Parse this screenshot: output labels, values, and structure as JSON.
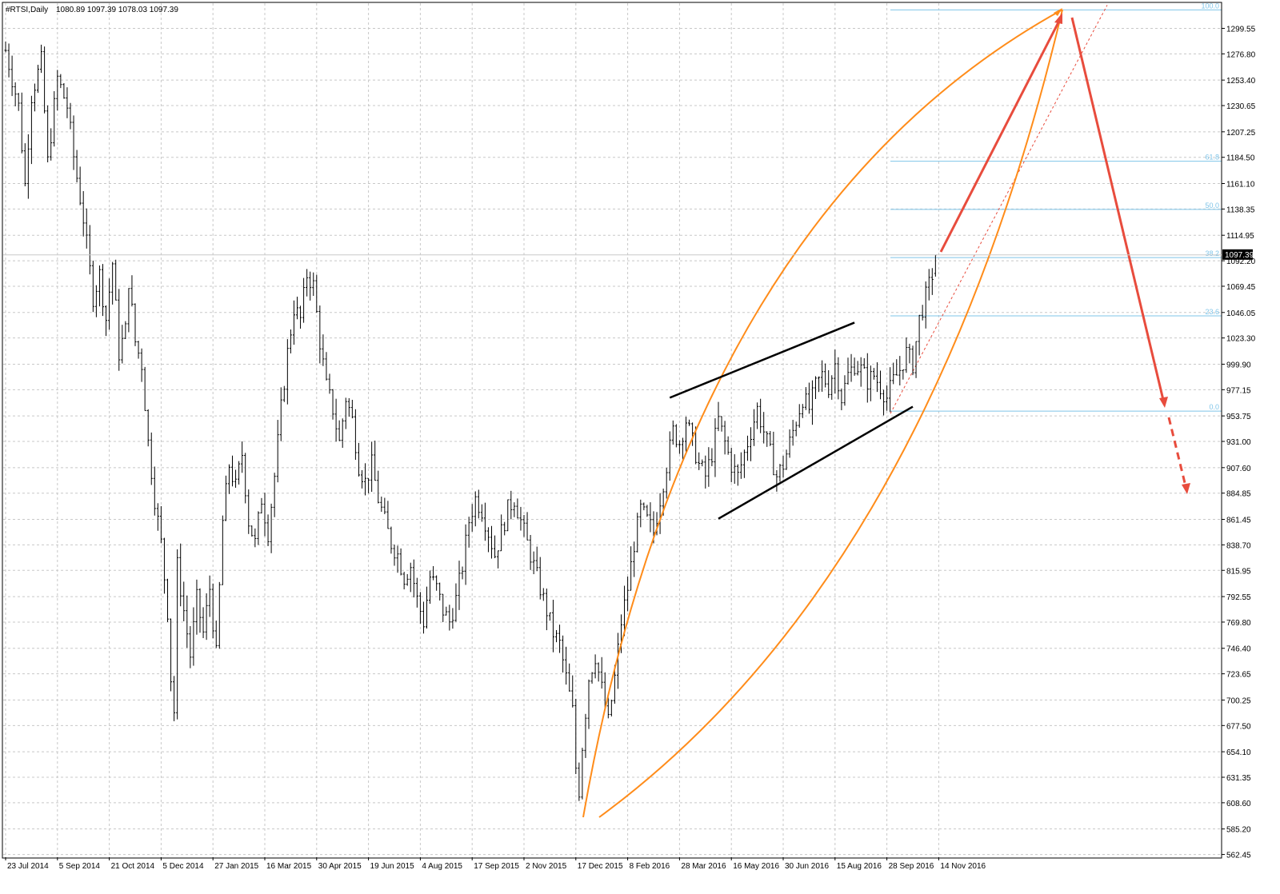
{
  "header": {
    "symbol_timeframe": "#RTSI,Daily",
    "ohlc": "1080.89 1097.39 1078.03 1097.39"
  },
  "colors": {
    "background": "#ffffff",
    "bars": "#000000",
    "grid": "#c8c8c8",
    "fibonacci": "#7fc4e8",
    "arc": "#ff8c1a",
    "forecast_arrow": "#e84c3d",
    "channel": "#000000"
  },
  "chart_data": {
    "type": "ohlc",
    "title": "",
    "symbol": "#RTSI",
    "timeframe": "Daily",
    "last_ohlc": {
      "open": 1080.89,
      "high": 1097.39,
      "low": 1078.03,
      "close": 1097.39
    },
    "current_price_label": "1097.39",
    "grid": true,
    "ylim": [
      560,
      1322
    ],
    "y_ticks": [
      "1299.55",
      "1276.80",
      "1253.40",
      "1230.65",
      "1207.25",
      "1184.50",
      "1161.10",
      "1138.35",
      "1114.95",
      "1092.20",
      "1069.45",
      "1046.05",
      "1023.30",
      "999.90",
      "977.15",
      "953.75",
      "931.00",
      "907.60",
      "884.85",
      "861.45",
      "838.70",
      "815.95",
      "792.55",
      "769.80",
      "746.40",
      "723.65",
      "700.25",
      "677.50",
      "654.10",
      "631.35",
      "608.60",
      "585.20",
      "562.45"
    ],
    "x_tick_labels": [
      "23 Jul 2014",
      "5 Sep 2014",
      "21 Oct 2014",
      "5 Dec 2014",
      "27 Jan 2015",
      "16 Mar 2015",
      "30 Apr 2015",
      "19 Jun 2015",
      "4 Aug 2015",
      "17 Sep 2015",
      "2 Nov 2015",
      "17 Dec 2015",
      "8 Feb 2016",
      "28 Mar 2016",
      "16 May 2016",
      "30 Jun 2016",
      "15 Aug 2016",
      "28 Sep 2016",
      "14 Nov 2016"
    ],
    "x_tick_index": [
      0,
      16,
      32,
      48,
      64,
      80,
      96,
      112,
      128,
      144,
      160,
      176,
      192,
      208,
      224,
      240,
      256,
      272,
      288
    ],
    "x_slots": 400,
    "price_path": [
      [
        0,
        1280
      ],
      [
        4,
        1230
      ],
      [
        6,
        1160
      ],
      [
        8,
        1240
      ],
      [
        11,
        1270
      ],
      [
        13,
        1180
      ],
      [
        16,
        1255
      ],
      [
        19,
        1230
      ],
      [
        21,
        1185
      ],
      [
        24,
        1130
      ],
      [
        27,
        1060
      ],
      [
        29,
        1080
      ],
      [
        31,
        1040
      ],
      [
        33,
        1090
      ],
      [
        35,
        1010
      ],
      [
        37,
        1030
      ],
      [
        38,
        1075
      ],
      [
        40,
        1020
      ],
      [
        42,
        1000
      ],
      [
        44,
        930
      ],
      [
        46,
        880
      ],
      [
        48,
        840
      ],
      [
        50,
        780
      ],
      [
        51,
        720
      ],
      [
        52,
        690
      ],
      [
        53,
        820
      ],
      [
        55,
        780
      ],
      [
        57,
        740
      ],
      [
        59,
        790
      ],
      [
        61,
        760
      ],
      [
        63,
        800
      ],
      [
        65,
        740
      ],
      [
        67,
        860
      ],
      [
        69,
        910
      ],
      [
        71,
        890
      ],
      [
        73,
        920
      ],
      [
        75,
        860
      ],
      [
        77,
        840
      ],
      [
        79,
        880
      ],
      [
        81,
        850
      ],
      [
        83,
        900
      ],
      [
        85,
        960
      ],
      [
        87,
        1010
      ],
      [
        89,
        1050
      ],
      [
        91,
        1040
      ],
      [
        93,
        1080
      ],
      [
        95,
        1070
      ],
      [
        97,
        1020
      ],
      [
        99,
        980
      ],
      [
        101,
        960
      ],
      [
        103,
        930
      ],
      [
        105,
        970
      ],
      [
        107,
        950
      ],
      [
        109,
        910
      ],
      [
        111,
        895
      ],
      [
        113,
        910
      ],
      [
        115,
        880
      ],
      [
        117,
        860
      ],
      [
        119,
        840
      ],
      [
        121,
        830
      ],
      [
        123,
        810
      ],
      [
        125,
        820
      ],
      [
        127,
        790
      ],
      [
        129,
        770
      ],
      [
        131,
        810
      ],
      [
        133,
        800
      ],
      [
        135,
        780
      ],
      [
        137,
        770
      ],
      [
        139,
        790
      ],
      [
        141,
        820
      ],
      [
        143,
        860
      ],
      [
        145,
        880
      ],
      [
        147,
        870
      ],
      [
        149,
        850
      ],
      [
        151,
        830
      ],
      [
        153,
        850
      ],
      [
        155,
        870
      ],
      [
        157,
        880
      ],
      [
        159,
        860
      ],
      [
        161,
        840
      ],
      [
        163,
        820
      ],
      [
        165,
        800
      ],
      [
        167,
        780
      ],
      [
        169,
        760
      ],
      [
        171,
        750
      ],
      [
        173,
        720
      ],
      [
        175,
        690
      ],
      [
        176,
        640
      ],
      [
        177,
        620
      ],
      [
        178,
        660
      ],
      [
        180,
        720
      ],
      [
        182,
        740
      ],
      [
        184,
        710
      ],
      [
        186,
        680
      ],
      [
        188,
        720
      ],
      [
        190,
        770
      ],
      [
        192,
        800
      ],
      [
        194,
        840
      ],
      [
        196,
        870
      ],
      [
        198,
        860
      ],
      [
        200,
        850
      ],
      [
        202,
        880
      ],
      [
        204,
        910
      ],
      [
        206,
        940
      ],
      [
        208,
        930
      ],
      [
        210,
        950
      ],
      [
        212,
        930
      ],
      [
        214,
        910
      ],
      [
        216,
        900
      ],
      [
        218,
        920
      ],
      [
        220,
        950
      ],
      [
        222,
        930
      ],
      [
        224,
        910
      ],
      [
        226,
        900
      ],
      [
        228,
        920
      ],
      [
        230,
        940
      ],
      [
        232,
        960
      ],
      [
        234,
        940
      ],
      [
        236,
        920
      ],
      [
        238,
        900
      ],
      [
        240,
        910
      ],
      [
        242,
        930
      ],
      [
        244,
        950
      ],
      [
        246,
        970
      ],
      [
        248,
        960
      ],
      [
        250,
        980
      ],
      [
        252,
        990
      ],
      [
        254,
        980
      ],
      [
        256,
        1000
      ],
      [
        258,
        970
      ],
      [
        260,
        990
      ],
      [
        262,
        1000
      ],
      [
        264,
        995
      ],
      [
        266,
        985
      ],
      [
        268,
        990
      ],
      [
        270,
        980
      ],
      [
        272,
        970
      ],
      [
        274,
        985
      ],
      [
        276,
        995
      ],
      [
        278,
        1010
      ],
      [
        280,
        1000
      ],
      [
        282,
        1040
      ],
      [
        284,
        1060
      ],
      [
        286,
        1080
      ],
      [
        287,
        1097
      ]
    ],
    "channel_lines": [
      {
        "from": [
          205,
          970
        ],
        "to": [
          262,
          1037
        ]
      },
      {
        "from": [
          220,
          862
        ],
        "to": [
          280,
          962
        ]
      }
    ],
    "fibonacci": {
      "levels": [
        {
          "label": "100.0",
          "price": 1316
        },
        {
          "label": "61.8",
          "price": 1181
        },
        {
          "label": "50.0",
          "price": 1138
        },
        {
          "label": "38.2",
          "price": 1095
        },
        {
          "label": "23.6",
          "price": 1043
        },
        {
          "label": "0.0",
          "price": 958
        }
      ]
    }
  }
}
